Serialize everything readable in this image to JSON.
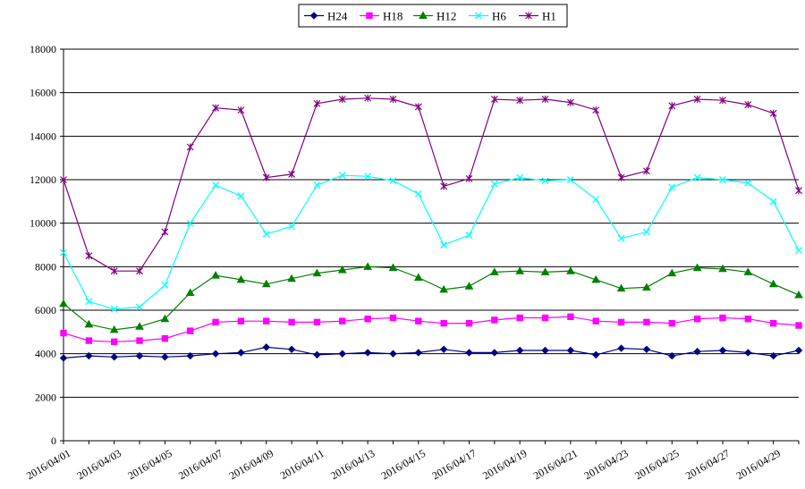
{
  "chart_data": {
    "type": "line",
    "title": "",
    "xlabel": "",
    "ylabel": "",
    "ylim": [
      0,
      18000
    ],
    "yticks": [
      0,
      2000,
      4000,
      6000,
      8000,
      10000,
      12000,
      14000,
      16000,
      18000
    ],
    "grid": true,
    "legend": "top-center",
    "categories": [
      "2016/04/01",
      "2016/04/02",
      "2016/04/03",
      "2016/04/04",
      "2016/04/05",
      "2016/04/06",
      "2016/04/07",
      "2016/04/08",
      "2016/04/09",
      "2016/04/10",
      "2016/04/11",
      "2016/04/12",
      "2016/04/13",
      "2016/04/14",
      "2016/04/15",
      "2016/04/16",
      "2016/04/17",
      "2016/04/18",
      "2016/04/19",
      "2016/04/20",
      "2016/04/21",
      "2016/04/22",
      "2016/04/23",
      "2016/04/24",
      "2016/04/25",
      "2016/04/26",
      "2016/04/27",
      "2016/04/28",
      "2016/04/29",
      "2016/04/30"
    ],
    "xtick_labels": [
      "2016/04/01",
      "2016/04/03",
      "2016/04/05",
      "2016/04/07",
      "2016/04/09",
      "2016/04/11",
      "2016/04/13",
      "2016/04/15",
      "2016/04/17",
      "2016/04/19",
      "2016/04/21",
      "2016/04/23",
      "2016/04/25",
      "2016/04/27",
      "2016/04/29"
    ],
    "series": [
      {
        "name": "H24",
        "color": "#000080",
        "marker": "diamond",
        "values": [
          3800,
          3900,
          3850,
          3900,
          3850,
          3900,
          4000,
          4050,
          4300,
          4200,
          3950,
          4000,
          4050,
          4000,
          4050,
          4200,
          4050,
          4050,
          4150,
          4150,
          4150,
          3950,
          4250,
          4200,
          3900,
          4100,
          4150,
          4050,
          3900,
          4150
        ]
      },
      {
        "name": "H18",
        "color": "#ff00ff",
        "marker": "square",
        "values": [
          4950,
          4600,
          4550,
          4600,
          4700,
          5050,
          5450,
          5500,
          5500,
          5450,
          5450,
          5500,
          5600,
          5650,
          5500,
          5400,
          5400,
          5550,
          5650,
          5650,
          5700,
          5500,
          5450,
          5450,
          5400,
          5600,
          5650,
          5600,
          5400,
          5300
        ]
      },
      {
        "name": "H12",
        "color": "#008000",
        "marker": "triangle",
        "values": [
          6300,
          5350,
          5100,
          5250,
          5600,
          6800,
          7600,
          7400,
          7200,
          7450,
          7700,
          7850,
          8000,
          7950,
          7500,
          6950,
          7100,
          7750,
          7800,
          7750,
          7800,
          7400,
          7000,
          7050,
          7700,
          7950,
          7900,
          7750,
          7200,
          6700
        ]
      },
      {
        "name": "H6",
        "color": "#00ffff",
        "marker": "x",
        "values": [
          8650,
          6400,
          6050,
          6150,
          7150,
          10000,
          11750,
          11250,
          9500,
          9850,
          11750,
          12200,
          12150,
          11950,
          11350,
          9000,
          9450,
          11800,
          12100,
          11950,
          12000,
          11100,
          9300,
          9600,
          11650,
          12100,
          12000,
          11850,
          11000,
          8750
        ]
      },
      {
        "name": "H1",
        "color": "#800080",
        "marker": "star",
        "values": [
          12000,
          8500,
          7800,
          7800,
          9600,
          13500,
          15300,
          15200,
          12100,
          12250,
          15500,
          15700,
          15750,
          15700,
          15350,
          11700,
          12050,
          15700,
          15650,
          15700,
          15550,
          15200,
          12100,
          12400,
          15400,
          15700,
          15650,
          15450,
          15050,
          11500
        ]
      }
    ]
  }
}
